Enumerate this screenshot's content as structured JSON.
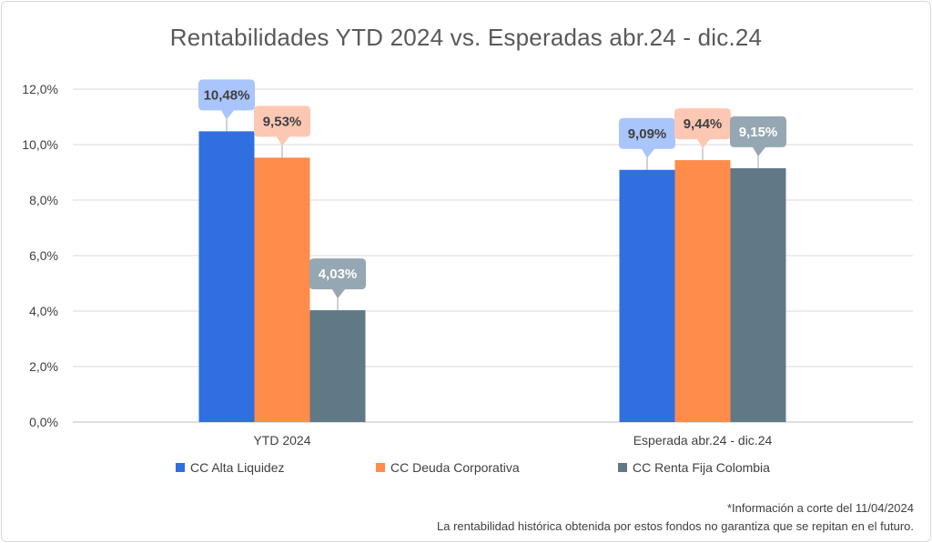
{
  "title": "Rentabilidades YTD 2024 vs. Esperadas abr.24 - dic.24",
  "footnote1": "*Información a corte del 11/04/2024",
  "footnote2": "La rentabilidad histórica obtenida por estos fondos no garantiza que se repitan en el futuro.",
  "chart_data": {
    "type": "bar",
    "title": "Rentabilidades YTD 2024 vs. Esperadas abr.24 - dic.24",
    "categories": [
      "YTD 2024",
      "Esperada abr.24 - dic.24"
    ],
    "series": [
      {
        "name": "CC Alta Liquidez",
        "color": "#2f6fe0",
        "label_bg": "#a9c5fb",
        "values": [
          10.48,
          9.09
        ],
        "labels": [
          "10,48%",
          "9,09%"
        ]
      },
      {
        "name": "CC Deuda Corporativa",
        "color": "#ff8c4a",
        "label_bg": "#fcc8b3",
        "values": [
          9.53,
          9.44
        ],
        "labels": [
          "9,53%",
          "9,44%"
        ]
      },
      {
        "name": "CC Renta Fija Colombia",
        "color": "#617986",
        "label_bg": "#95a7b2",
        "values": [
          4.03,
          9.15
        ],
        "labels": [
          "4,03%",
          "9,15%"
        ]
      }
    ],
    "yticks": [
      "0,0%",
      "2,0%",
      "4,0%",
      "6,0%",
      "8,0%",
      "10,0%",
      "12,0%"
    ],
    "ylim": [
      0,
      12
    ],
    "grid": true,
    "legend_position": "bottom"
  }
}
